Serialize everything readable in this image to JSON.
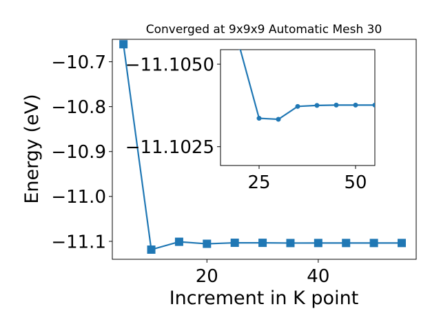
{
  "chart_data": [
    {
      "type": "line",
      "title": "Converged at 9x9x9 Automatic Mesh 30",
      "xlabel": "Increment in K point",
      "ylabel": "Energy (eV)",
      "xlim": [
        3,
        57.6
      ],
      "ylim": [
        -11.14,
        -10.65
      ],
      "xticks": [
        20,
        40
      ],
      "xtick_labels": [
        "20",
        "40"
      ],
      "yticks": [
        -10.7,
        -10.8,
        -10.9,
        -11.0,
        -11.1
      ],
      "ytick_labels": [
        "−10.7",
        "−10.8",
        "−10.9",
        "−11.0",
        "−11.1"
      ],
      "grid": false,
      "marker": "square",
      "color": "#1f77b4",
      "series": [
        {
          "x": [
            5,
            10,
            15,
            20,
            25,
            30,
            35,
            40,
            45,
            50,
            55
          ],
          "y": [
            -10.661,
            -11.1185,
            -11.101,
            -11.1055,
            -11.1032,
            -11.1033,
            -11.1038,
            -11.1037,
            -11.1037,
            -11.1037,
            -11.1037
          ]
        }
      ]
    },
    {
      "type": "line",
      "role": "inset",
      "xlim": [
        15,
        55
      ],
      "ylim": [
        -11.10193,
        -11.10544
      ],
      "xticks": [
        25,
        50
      ],
      "xtick_labels": [
        "25",
        "50"
      ],
      "yticks": [
        -11.105,
        -11.1025
      ],
      "ytick_labels": [
        "−11.1050",
        "−11.1025"
      ],
      "grid": false,
      "marker": "circle",
      "color": "#1f77b4",
      "series": [
        {
          "x": [
            20,
            25,
            30,
            35,
            40,
            45,
            50,
            55
          ],
          "y": [
            -11.1055,
            -11.10336,
            -11.10333,
            -11.10372,
            -11.10375,
            -11.10376,
            -11.10376,
            -11.10376
          ]
        }
      ]
    }
  ]
}
